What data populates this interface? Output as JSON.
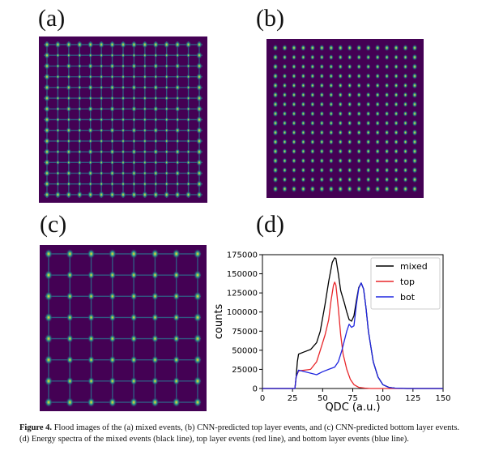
{
  "panels": {
    "a": {
      "label": "(a)"
    },
    "b": {
      "label": "(b)"
    },
    "c": {
      "label": "(c)"
    },
    "d": {
      "label": "(d)"
    }
  },
  "colors": {
    "flood_background": "#440154",
    "grid_line": "#2d6f8e",
    "spot_dim": "#21918c",
    "spot_bright": "#fde725",
    "mixed": "#000000",
    "top": "#e8262a",
    "bot": "#1f26e0"
  },
  "chart_data": {
    "type": "line",
    "xlabel": "QDC (a.u.)",
    "ylabel": "counts",
    "xlim": [
      0,
      150
    ],
    "ylim": [
      0,
      175000
    ],
    "xticks": [
      "0",
      "25",
      "50",
      "75",
      "100",
      "125",
      "150"
    ],
    "yticks": [
      "0",
      "25000",
      "50000",
      "75000",
      "100000",
      "125000",
      "150000",
      "175000"
    ],
    "legend_position": "top-right",
    "grid": false,
    "series": [
      {
        "name": "mixed",
        "color": "#000000",
        "x": [
          0,
          27,
          28,
          29,
          30,
          35,
          40,
          45,
          48,
          52,
          55,
          58,
          60,
          61,
          63,
          65,
          68,
          70,
          72,
          74,
          76,
          78,
          80,
          82,
          84,
          86,
          88,
          92,
          96,
          100,
          105,
          110,
          120,
          150
        ],
        "y": [
          0,
          0,
          15000,
          35000,
          45000,
          48000,
          51000,
          60000,
          75000,
          110000,
          140000,
          165000,
          171000,
          170000,
          150000,
          128000,
          112000,
          100000,
          90000,
          88000,
          95000,
          115000,
          132000,
          138000,
          130000,
          105000,
          75000,
          35000,
          15000,
          5000,
          1500,
          500,
          0,
          0
        ]
      },
      {
        "name": "top",
        "color": "#e8262a",
        "x": [
          0,
          27,
          28,
          30,
          35,
          40,
          45,
          48,
          52,
          55,
          57,
          59,
          60,
          61,
          63,
          65,
          67,
          70,
          73,
          76,
          80,
          85,
          90,
          150
        ],
        "y": [
          0,
          0,
          15000,
          23000,
          24000,
          25000,
          35000,
          50000,
          70000,
          90000,
          115000,
          135000,
          139000,
          135000,
          105000,
          70000,
          45000,
          25000,
          12000,
          5000,
          1500,
          500,
          0,
          0
        ]
      },
      {
        "name": "bot",
        "color": "#1f26e0",
        "x": [
          0,
          27,
          28,
          30,
          35,
          40,
          45,
          50,
          55,
          60,
          63,
          66,
          70,
          72,
          74,
          76,
          78,
          80,
          82,
          84,
          86,
          88,
          92,
          96,
          100,
          105,
          110,
          120,
          150
        ],
        "y": [
          0,
          0,
          15000,
          24000,
          22000,
          20000,
          18000,
          22000,
          25000,
          28000,
          35000,
          50000,
          75000,
          84000,
          80000,
          82000,
          110000,
          131000,
          138000,
          130000,
          105000,
          75000,
          35000,
          15000,
          5000,
          1500,
          500,
          0,
          0
        ]
      }
    ]
  },
  "caption": {
    "label": "Figure 4.",
    "text": " Flood images of the (a) mixed events, (b) CNN-predicted top layer events, and (c) CNN-predicted bottom layer events. (d) Energy spectra of the mixed events (black line), top layer events (red line), and bottom layer events (blue line)."
  }
}
